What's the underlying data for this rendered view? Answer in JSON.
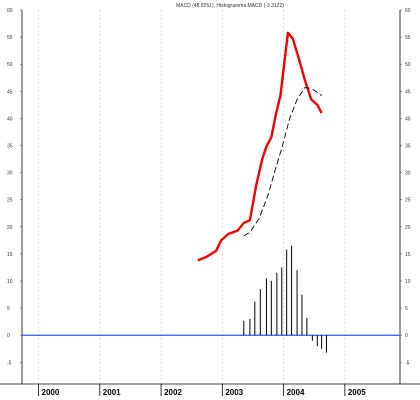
{
  "chart_data": {
    "type": "line",
    "title": "MACD (48.8251), Histogramma MACD (-3.3122)",
    "xlabel": "",
    "ylabel": "",
    "x_tick_labels": [
      "2000",
      "2001",
      "2002",
      "2003",
      "2004",
      "2005"
    ],
    "xlim": [
      1999.73,
      2005.9
    ],
    "ylim": [
      -9,
      60
    ],
    "y_ticks": [
      -5,
      0,
      5,
      10,
      15,
      20,
      25,
      30,
      35,
      40,
      45,
      50,
      55,
      60
    ],
    "y_tick_labels": [
      "-5",
      "0",
      "5",
      "10",
      "15",
      "20",
      "25",
      "30",
      "35",
      "40",
      "45",
      "50",
      "55",
      "60"
    ],
    "grid": true,
    "zero_line_color": "#3355ff",
    "series": [
      {
        "kind": "line",
        "color": "#ee0000",
        "points": [
          [
            2002.6,
            13.8
          ],
          [
            2002.75,
            14.5
          ],
          [
            2002.9,
            15.6
          ],
          [
            2002.98,
            17.5
          ],
          [
            2003.1,
            18.7
          ],
          [
            2003.25,
            19.3
          ],
          [
            2003.35,
            20.7
          ],
          [
            2003.45,
            21.2
          ],
          [
            2003.55,
            27.5
          ],
          [
            2003.65,
            32.5
          ],
          [
            2003.72,
            34.8
          ],
          [
            2003.8,
            36.5
          ],
          [
            2003.87,
            40.5
          ],
          [
            2003.95,
            44.3
          ],
          [
            2004.07,
            55.8
          ],
          [
            2004.15,
            54.7
          ],
          [
            2004.25,
            51.0
          ],
          [
            2004.35,
            47.0
          ],
          [
            2004.45,
            43.5
          ],
          [
            2004.55,
            42.5
          ],
          [
            2004.62,
            41.0
          ]
        ]
      },
      {
        "kind": "line",
        "color": "#000000",
        "dashed": true,
        "points": [
          [
            2003.35,
            18.3
          ],
          [
            2003.45,
            19.0
          ],
          [
            2003.6,
            21.5
          ],
          [
            2003.75,
            26.0
          ],
          [
            2003.87,
            30.8
          ],
          [
            2003.97,
            34.5
          ],
          [
            2004.1,
            40.0
          ],
          [
            2004.22,
            43.5
          ],
          [
            2004.35,
            45.7
          ],
          [
            2004.45,
            45.5
          ],
          [
            2004.55,
            44.8
          ],
          [
            2004.62,
            44.2
          ]
        ]
      },
      {
        "kind": "histogram",
        "color": "#000000",
        "points": [
          [
            2003.35,
            2.7
          ],
          [
            2003.45,
            3.0
          ],
          [
            2003.53,
            6.2
          ],
          [
            2003.62,
            8.5
          ],
          [
            2003.72,
            10.5
          ],
          [
            2003.8,
            10.0
          ],
          [
            2003.89,
            11.5
          ],
          [
            2003.97,
            12.5
          ],
          [
            2004.05,
            15.8
          ],
          [
            2004.13,
            16.5
          ],
          [
            2004.22,
            12.0
          ],
          [
            2004.3,
            7.5
          ],
          [
            2004.38,
            3.2
          ],
          [
            2004.47,
            -1.0
          ],
          [
            2004.55,
            -2.0
          ],
          [
            2004.62,
            -2.5
          ],
          [
            2004.7,
            -3.2
          ]
        ]
      }
    ]
  }
}
